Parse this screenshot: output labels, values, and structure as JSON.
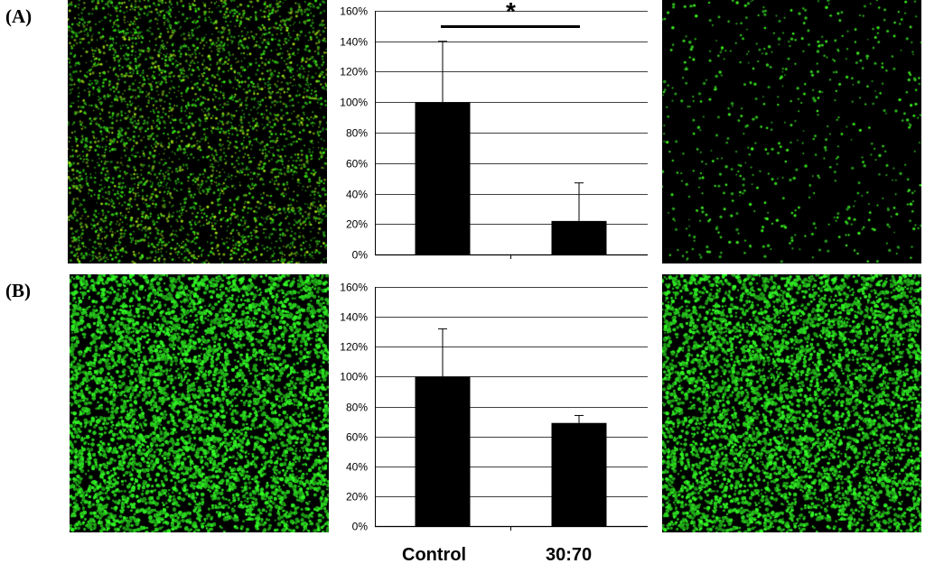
{
  "panels": [
    {
      "label": "(A)"
    },
    {
      "label": "(B)"
    }
  ],
  "x_labels": [
    "Control",
    "30:70"
  ],
  "colors": {
    "bar": "#000000",
    "grid": "#000000",
    "cells": "#2fe82f",
    "micro_bg": "#000000"
  },
  "chart_data": [
    {
      "type": "bar",
      "panel": "(A)",
      "categories": [
        "Control",
        "30:70"
      ],
      "values": [
        1.0,
        0.22
      ],
      "error_upper": [
        1.4,
        0.47
      ],
      "ylim": [
        0,
        1.6
      ],
      "yticks": [
        "0%",
        "20%",
        "40%",
        "60%",
        "80%",
        "100%",
        "120%",
        "140%",
        "160%"
      ],
      "significance": "*",
      "grid": true
    },
    {
      "type": "bar",
      "panel": "(B)",
      "categories": [
        "Control",
        "30:70"
      ],
      "values": [
        1.0,
        0.69
      ],
      "error_upper": [
        1.32,
        0.74
      ],
      "ylim": [
        0,
        1.6
      ],
      "yticks": [
        "0%",
        "20%",
        "40%",
        "60%",
        "80%",
        "100%",
        "120%",
        "140%",
        "160%"
      ],
      "grid": true
    }
  ]
}
